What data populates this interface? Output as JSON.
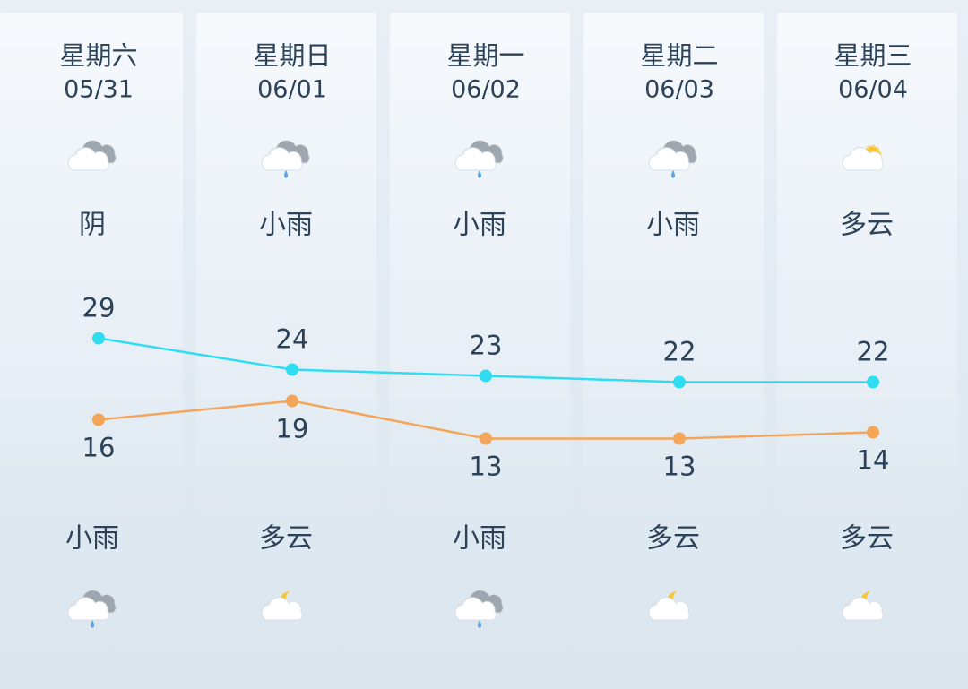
{
  "days": [
    {
      "weekday": "星期六",
      "date": "05/31",
      "day_weather": "阴",
      "high": 29,
      "low": 16,
      "night_weather": "小雨"
    },
    {
      "weekday": "星期日",
      "date": "06/01",
      "day_weather": "小雨",
      "high": 24,
      "low": 19,
      "night_weather": "多云"
    },
    {
      "weekday": "星期一",
      "date": "06/02",
      "day_weather": "小雨",
      "high": 23,
      "low": 13,
      "night_weather": "小雨"
    },
    {
      "weekday": "星期二",
      "date": "06/03",
      "day_weather": "小雨",
      "high": 22,
      "low": 13,
      "night_weather": "多云"
    },
    {
      "weekday": "星期三",
      "date": "06/04",
      "day_weather": "多云",
      "high": 22,
      "low": 14,
      "night_weather": "多云"
    }
  ]
}
